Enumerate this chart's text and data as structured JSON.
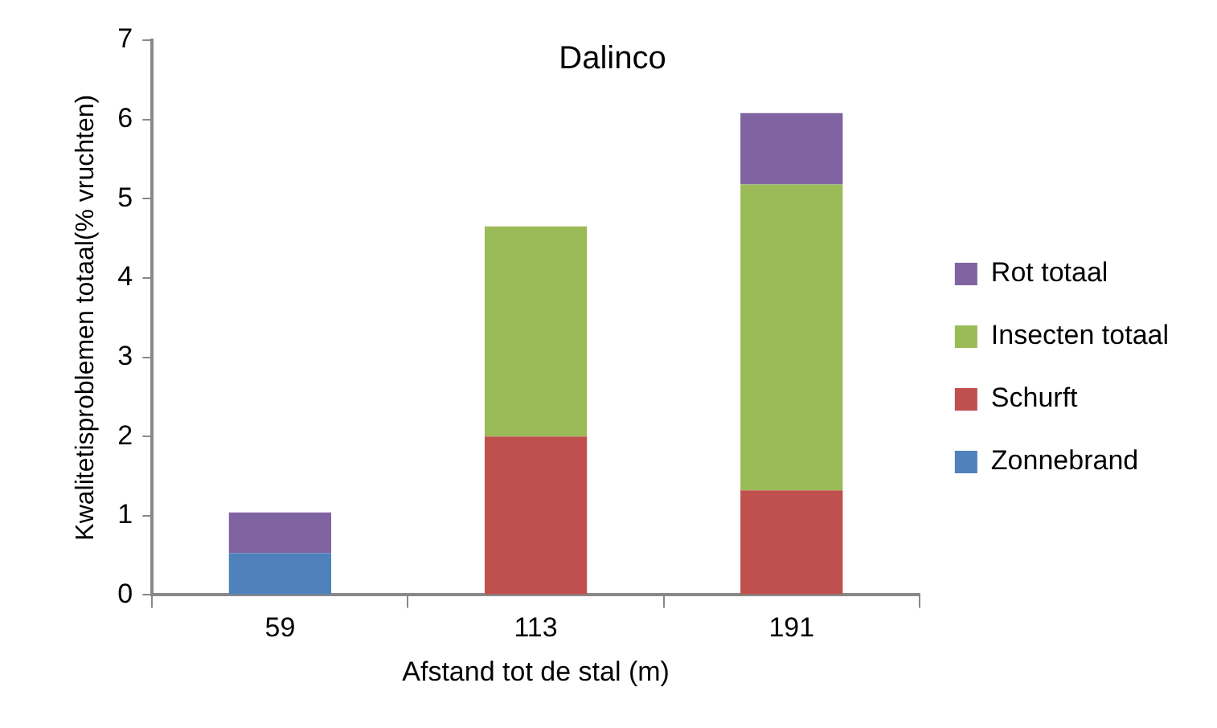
{
  "chart_data": {
    "type": "bar",
    "title": "Dalinco",
    "xlabel": "Afstand tot de stal (m)",
    "ylabel": "Kwalitetisproblemen totaal(% vruchten)",
    "categories": [
      "59",
      "113",
      "191"
    ],
    "stacked": true,
    "legend": "right",
    "grid": false,
    "ylim": [
      0,
      7
    ],
    "yticks": [
      0,
      1,
      2,
      3,
      4,
      5,
      6,
      7
    ],
    "series": [
      {
        "name": "Zonnebrand",
        "color": "#4f81bd",
        "values": [
          0.53,
          0,
          0
        ]
      },
      {
        "name": "Schurft",
        "color": "#c0504d",
        "values": [
          0,
          2.0,
          1.32
        ]
      },
      {
        "name": "Insecten totaal",
        "color": "#9bbb59",
        "values": [
          0,
          2.65,
          3.86
        ]
      },
      {
        "name": "Rot totaal",
        "color": "#8064a2",
        "values": [
          0.51,
          0,
          0.9
        ]
      }
    ]
  }
}
